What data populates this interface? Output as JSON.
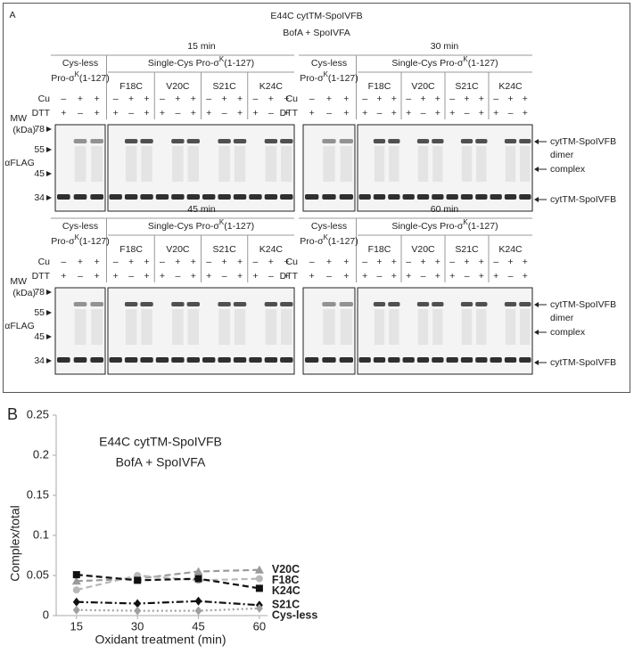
{
  "panel_a": {
    "label": "A",
    "title": "E44C cytTM-SpoIVFB",
    "subtitle": "BofA + SpoIVFA",
    "cys_less": "Cys-less",
    "pro_prefix": "Pro-σ",
    "pro_sup": "K",
    "pro_suffix": "(1-127)",
    "single_cys": "Single-Cys Pro-σ",
    "groups": [
      "F18C",
      "V20C",
      "S21C",
      "K24C"
    ],
    "cu": "Cu",
    "dtt": "DTT",
    "cu_signs": [
      "–",
      "+",
      "+"
    ],
    "dtt_signs": [
      "+",
      "–",
      "+"
    ],
    "mw": "MW",
    "kda": "(kDa)",
    "mw_markers": [
      78,
      55,
      45,
      34
    ],
    "antibody": "αFLAG",
    "timepoints": [
      "15 min",
      "30 min",
      "45 min",
      "60 min"
    ],
    "band_labels": {
      "dimer_1": "cytTM-SpoIVFB",
      "dimer_2": "dimer",
      "complex": "complex",
      "monomer": "cytTM-SpoIVFB"
    }
  },
  "chart_data": {
    "type": "line",
    "panel_label": "B",
    "title": "E44C cytTM-SpoIVFB",
    "subtitle": "BofA + SpoIVFA",
    "x_label": "Oxidant treatment (min)",
    "y_label": "Complex/total",
    "x": [
      15,
      30,
      45,
      60
    ],
    "xlim": [
      10,
      62
    ],
    "xticks": [
      15,
      30,
      45,
      60
    ],
    "ylim": [
      0,
      0.25
    ],
    "yticks": [
      0,
      0.05,
      0.1,
      0.15,
      0.2,
      0.25
    ],
    "grid": false,
    "series": [
      {
        "name": "V20C",
        "color": "#9a9a9a",
        "marker": "triangle",
        "dash": "dashed",
        "values": [
          0.043,
          0.046,
          0.055,
          0.057
        ]
      },
      {
        "name": "F18C",
        "color": "#b8b8b8",
        "marker": "circle",
        "dash": "dashed",
        "values": [
          0.032,
          0.05,
          0.044,
          0.046
        ]
      },
      {
        "name": "K24C",
        "color": "#111111",
        "marker": "square",
        "dash": "dashed",
        "values": [
          0.051,
          0.044,
          0.046,
          0.034
        ]
      },
      {
        "name": "S21C",
        "color": "#111111",
        "marker": "diamond",
        "dash": "dashdot",
        "values": [
          0.017,
          0.015,
          0.018,
          0.013
        ]
      },
      {
        "name": "Cys-less",
        "color": "#a0a0a0",
        "marker": "diamond",
        "dash": "dotted",
        "values": [
          0.007,
          0.006,
          0.006,
          0.009
        ]
      }
    ]
  }
}
